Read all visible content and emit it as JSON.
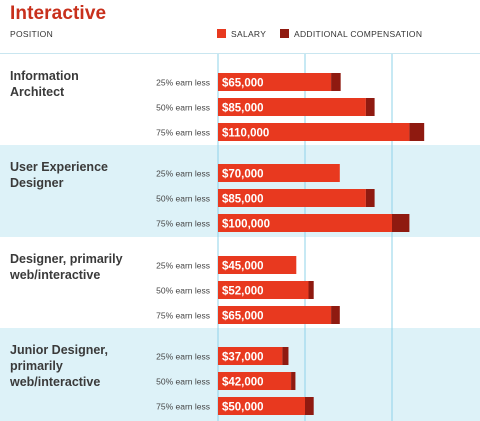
{
  "chart_data": {
    "type": "bar",
    "orientation": "horizontal",
    "stacked": true,
    "title": "Interactive",
    "row_header": "POSITION",
    "xlim": [
      0,
      130000
    ],
    "legend_position": "top",
    "series": [
      {
        "name": "SALARY",
        "color": "#e8391f"
      },
      {
        "name": "ADDITIONAL COMPENSATION",
        "color": "#8f1a10"
      }
    ],
    "groups": [
      {
        "label": "Information Architect",
        "lines": [
          "Information",
          "Architect"
        ],
        "shaded": false,
        "rows": [
          {
            "label": "25% earn less",
            "salary": 65000,
            "salary_label": "$65,000",
            "additional": 5500
          },
          {
            "label": "50% earn less",
            "salary": 85000,
            "salary_label": "$85,000",
            "additional": 5000
          },
          {
            "label": "75% earn less",
            "salary": 110000,
            "salary_label": "$110,000",
            "additional": 8500
          }
        ]
      },
      {
        "label": "User Experience Designer",
        "lines": [
          "User Experience",
          "Designer"
        ],
        "shaded": true,
        "rows": [
          {
            "label": "25% earn less",
            "salary": 70000,
            "salary_label": "$70,000",
            "additional": 0
          },
          {
            "label": "50% earn less",
            "salary": 85000,
            "salary_label": "$85,000",
            "additional": 5000
          },
          {
            "label": "75% earn less",
            "salary": 100000,
            "salary_label": "$100,000",
            "additional": 10000
          }
        ]
      },
      {
        "label": "Designer, primarily web/interactive",
        "lines": [
          "Designer, primarily",
          "web/interactive"
        ],
        "shaded": false,
        "rows": [
          {
            "label": "25% earn less",
            "salary": 45000,
            "salary_label": "$45,000",
            "additional": 0
          },
          {
            "label": "50% earn less",
            "salary": 52000,
            "salary_label": "$52,000",
            "additional": 3000
          },
          {
            "label": "75% earn less",
            "salary": 65000,
            "salary_label": "$65,000",
            "additional": 5000
          }
        ]
      },
      {
        "label": "Junior Designer, primarily web/interactive",
        "lines": [
          "Junior Designer,",
          "primarily",
          "web/interactive"
        ],
        "shaded": true,
        "rows": [
          {
            "label": "25% earn less",
            "salary": 37000,
            "salary_label": "$37,000",
            "additional": 3500
          },
          {
            "label": "50% earn less",
            "salary": 42000,
            "salary_label": "$42,000",
            "additional": 2500
          },
          {
            "label": "75% earn less",
            "salary": 50000,
            "salary_label": "$50,000",
            "additional": 5000
          }
        ]
      }
    ],
    "gridlines": [
      0,
      50000,
      100000
    ],
    "colors": {
      "title": "#c8301c",
      "shaded_band": "#ddf2f8",
      "gridline": "#8fd3ea",
      "divider": "#c9e6f0"
    }
  }
}
